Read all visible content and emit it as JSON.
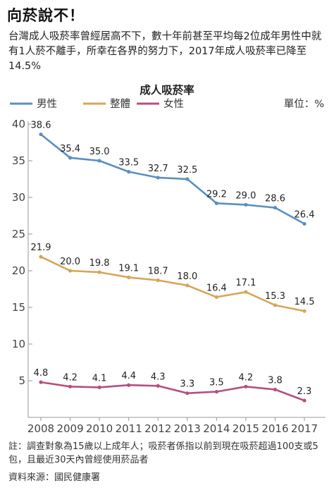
{
  "header": {
    "title": "向菸說不！",
    "intro": "台灣成人吸菸率曾經居高不下，數十年前甚至平均每2位成年男性中就有1人菸不離手，所幸在各界的努力下，2017年成人吸菸率已降至14.5%"
  },
  "chart_data": {
    "type": "line",
    "title": "成人吸菸率",
    "unit_label": "單位：%",
    "x": [
      "2008",
      "2009",
      "2010",
      "2011",
      "2012",
      "2013",
      "2014",
      "2015",
      "2016",
      "2017"
    ],
    "series": [
      {
        "name": "男性",
        "color": "#5b8fbf",
        "values": [
          38.6,
          35.4,
          35.0,
          33.5,
          32.7,
          32.5,
          29.2,
          29.0,
          28.6,
          26.4
        ]
      },
      {
        "name": "整體",
        "color": "#d6a55a",
        "values": [
          21.9,
          20.0,
          19.8,
          19.1,
          18.7,
          18.0,
          16.4,
          17.1,
          15.3,
          14.5
        ]
      },
      {
        "name": "女性",
        "color": "#b5507d",
        "values": [
          4.8,
          4.2,
          4.1,
          4.4,
          4.3,
          3.3,
          3.5,
          4.2,
          3.8,
          2.3
        ]
      }
    ],
    "yticks": [
      5,
      10,
      15,
      20,
      25,
      30,
      35,
      40
    ],
    "ylim": [
      0,
      40
    ],
    "grid": false,
    "legend": "top-left"
  },
  "footer": {
    "note": "註：調查對象為15歲以上成年人；吸菸者係指以前到現在吸菸超過100支或5包，且最近30天內曾經使用菸品者",
    "source": "資料來源：國民健康署"
  }
}
